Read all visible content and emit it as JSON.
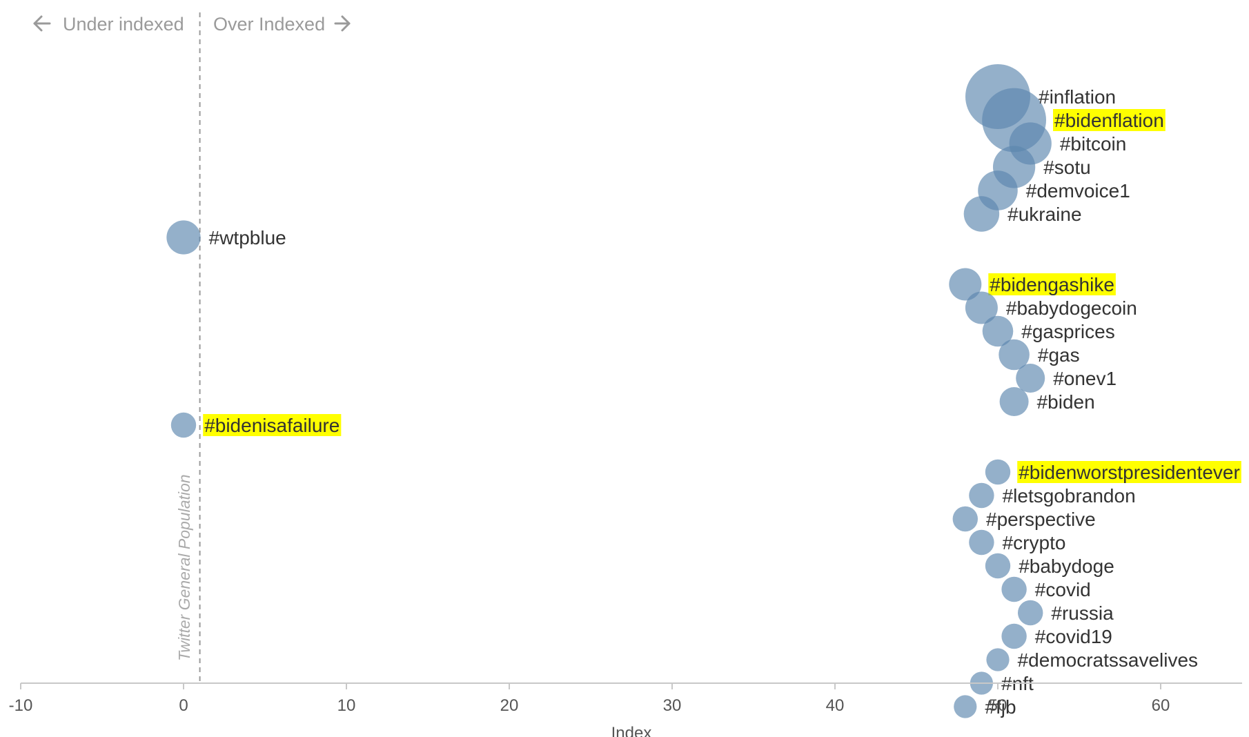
{
  "chart_data": {
    "type": "scatter",
    "xlabel": "Index",
    "xlim": [
      -10,
      65
    ],
    "xticks": [
      -10,
      0,
      10,
      20,
      30,
      40,
      50,
      60
    ],
    "grid": false,
    "reference_line": {
      "x": 1,
      "label": "Twitter General Population"
    },
    "region_labels": {
      "left": "Under indexed",
      "right": "Over Indexed"
    },
    "point_color": "#5b86ad",
    "highlight_color": "#ffff00",
    "points": [
      {
        "label": "#inflation",
        "x": 50,
        "size": 40,
        "highlight": false
      },
      {
        "label": "#bidenflation",
        "x": 51,
        "size": 39,
        "highlight": true
      },
      {
        "label": "#bitcoin",
        "x": 52,
        "size": 17,
        "highlight": false
      },
      {
        "label": "#sotu",
        "x": 51,
        "size": 17,
        "highlight": false
      },
      {
        "label": "#demvoice1",
        "x": 50,
        "size": 15,
        "highlight": false
      },
      {
        "label": "#ukraine",
        "x": 49,
        "size": 12,
        "highlight": false
      },
      {
        "label": "#wtpblue",
        "x": 0,
        "size": 11,
        "highlight": false
      },
      {
        "label": "#bidengashike",
        "x": 48,
        "size": 10,
        "highlight": true
      },
      {
        "label": "#babydogecoin",
        "x": 49,
        "size": 10,
        "highlight": false
      },
      {
        "label": "#gasprices",
        "x": 50,
        "size": 9,
        "highlight": false
      },
      {
        "label": "#gas",
        "x": 51,
        "size": 9,
        "highlight": false
      },
      {
        "label": "#onev1",
        "x": 52,
        "size": 8,
        "highlight": false
      },
      {
        "label": "#biden",
        "x": 51,
        "size": 8,
        "highlight": false
      },
      {
        "label": "#bidenisafailure",
        "x": 0,
        "size": 6,
        "highlight": true
      },
      {
        "label": "#bidenworstpresidentever",
        "x": 50,
        "size": 6,
        "highlight": true
      },
      {
        "label": "#letsgobrandon",
        "x": 49,
        "size": 6,
        "highlight": false
      },
      {
        "label": "#perspective",
        "x": 48,
        "size": 6,
        "highlight": false
      },
      {
        "label": "#crypto",
        "x": 49,
        "size": 6,
        "highlight": false
      },
      {
        "label": "#babydoge",
        "x": 50,
        "size": 6,
        "highlight": false
      },
      {
        "label": "#covid",
        "x": 51,
        "size": 6,
        "highlight": false
      },
      {
        "label": "#russia",
        "x": 52,
        "size": 6,
        "highlight": false
      },
      {
        "label": "#covid19",
        "x": 51,
        "size": 6,
        "highlight": false
      },
      {
        "label": "#democratssavelives",
        "x": 50,
        "size": 5,
        "highlight": false
      },
      {
        "label": "#nft",
        "x": 49,
        "size": 5,
        "highlight": false
      },
      {
        "label": "#fjb",
        "x": 48,
        "size": 5,
        "highlight": false
      }
    ]
  }
}
